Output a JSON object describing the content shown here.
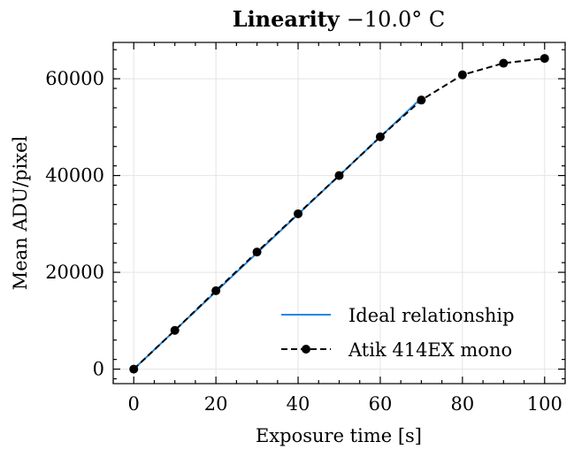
{
  "chart_data": {
    "type": "line",
    "title_bold": "Linearity",
    "title_rest": "−10.0° C",
    "xlabel": "Exposure time [s]",
    "ylabel": "Mean ADU/pixel",
    "xlim": [
      -5,
      105
    ],
    "ylim": [
      -3000,
      67500
    ],
    "xticks": [
      0,
      20,
      40,
      60,
      80,
      100
    ],
    "yticks": [
      0,
      20000,
      40000,
      60000
    ],
    "grid": true,
    "legend_position": "lower-right",
    "series": [
      {
        "name": "Ideal relationship",
        "style": "solid",
        "color": "#1e88e5",
        "x": [
          0,
          70
        ],
        "y": [
          0,
          56000
        ]
      },
      {
        "name": "Atik 414EX mono",
        "style": "dashed-with-markers",
        "color": "#000000",
        "x": [
          0,
          10,
          20,
          30,
          40,
          50,
          60,
          70,
          80,
          90,
          100
        ],
        "y": [
          0,
          8000,
          16200,
          24200,
          32100,
          40000,
          48000,
          55600,
          60800,
          63200,
          64200
        ]
      }
    ]
  }
}
